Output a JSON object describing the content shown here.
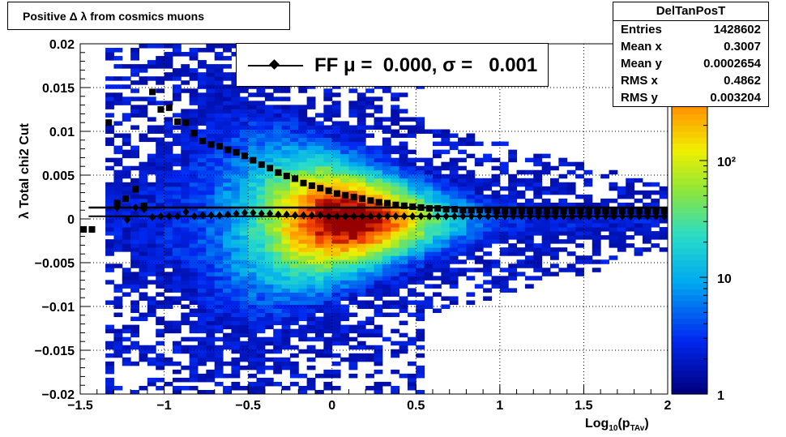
{
  "title": "Positive Δ λ from cosmics muons",
  "stats": {
    "name": "DelTanPosT",
    "rows": [
      {
        "label": "Entries",
        "value": "1428602"
      },
      {
        "label": "Mean x",
        "value": "0.3007"
      },
      {
        "label": "Mean y",
        "value": "0.0002654"
      },
      {
        "label": "RMS x",
        "value": "0.4862"
      },
      {
        "label": "RMS y",
        "value": "0.003204"
      }
    ]
  },
  "fit_legend": "FF μ =  0.000, σ =   0.001",
  "axes": {
    "ylabel": "λ  Total chi2 Cut",
    "xlabel_main": "Log",
    "xlabel_sub": "10",
    "xlabel_paren": "(p",
    "xlabel_subsub": "TAv",
    "xlabel_close": ")"
  },
  "colors": {
    "marker": "#000000",
    "palette": "rainbow"
  },
  "chart_data": {
    "type": "heatmap",
    "xlim": [
      -1.5,
      2
    ],
    "ylim": [
      -0.02,
      0.02
    ],
    "zlim": [
      1,
      1000
    ],
    "z_log": true,
    "grid": true,
    "x_ticks": [
      "−1.5",
      "−1",
      "−0.5",
      "0",
      "0.5",
      "1",
      "1.5",
      "2"
    ],
    "x_tick_values": [
      -1.5,
      -1,
      -0.5,
      0,
      0.5,
      1,
      1.5,
      2
    ],
    "y_ticks": [
      "0.02",
      "0.015",
      "0.01",
      "0.005",
      "0",
      "−0.005",
      "−0.01",
      "−0.015",
      "−0.02"
    ],
    "y_tick_values": [
      0.02,
      0.015,
      0.01,
      0.005,
      0,
      -0.005,
      -0.01,
      -0.015,
      -0.02
    ],
    "z_ticks": [
      "1",
      "10",
      "10²"
    ],
    "z_tick_values": [
      1,
      10,
      100
    ],
    "fit_line_y": 0.0013,
    "sigma_points": {
      "x": [
        -1.48,
        -1.43,
        -1.33,
        -1.28,
        -1.23,
        -1.17,
        -1.12,
        -1.07,
        -1.02,
        -0.97,
        -0.92,
        -0.87,
        -0.82,
        -0.77,
        -0.72,
        -0.67,
        -0.62,
        -0.57,
        -0.52,
        -0.47,
        -0.42,
        -0.37,
        -0.32,
        -0.27,
        -0.22,
        -0.17,
        -0.12,
        -0.07,
        -0.02,
        0.03,
        0.08,
        0.13,
        0.18,
        0.23,
        0.28,
        0.33,
        0.38,
        0.43,
        0.48,
        0.53,
        0.58,
        0.63,
        0.68,
        0.73,
        0.78,
        0.83,
        0.88,
        0.93,
        0.98,
        1.03,
        1.08,
        1.13,
        1.18,
        1.23,
        1.28,
        1.33,
        1.38,
        1.43,
        1.48,
        1.53,
        1.58,
        1.63,
        1.68,
        1.73,
        1.78,
        1.83,
        1.88,
        1.93,
        1.98
      ],
      "y": [
        -0.0012,
        -0.0012,
        0.011,
        0.0018,
        0.0023,
        0.0034,
        0.0015,
        0.0145,
        0.0125,
        0.0127,
        0.0111,
        0.011,
        0.0098,
        0.0089,
        0.0085,
        0.0083,
        0.0079,
        0.0076,
        0.0072,
        0.0067,
        0.0062,
        0.0058,
        0.0053,
        0.0049,
        0.0046,
        0.0041,
        0.0038,
        0.0035,
        0.0032,
        0.0029,
        0.0027,
        0.0025,
        0.0023,
        0.0021,
        0.0019,
        0.0018,
        0.0016,
        0.0015,
        0.0014,
        0.0013,
        0.0012,
        0.0012,
        0.0011,
        0.0011,
        0.001,
        0.001,
        0.001,
        0.001,
        0.0009,
        0.0009,
        0.0009,
        0.0009,
        0.0009,
        0.0009,
        0.0009,
        0.0009,
        0.0009,
        0.0009,
        0.0009,
        0.0009,
        0.0009,
        0.0009,
        0.0009,
        0.0009,
        0.0009,
        0.0009,
        0.0009,
        0.0009,
        0.0009
      ]
    },
    "mean_points": {
      "x": [
        -1.28,
        -1.22,
        -1.17,
        -1.12,
        -1.07,
        -1.02,
        -0.97,
        -0.92,
        -0.87,
        -0.82,
        -0.77,
        -0.72,
        -0.67,
        -0.62,
        -0.57,
        -0.52,
        -0.47,
        -0.42,
        -0.37,
        -0.32,
        -0.27,
        -0.22,
        -0.17,
        -0.12,
        -0.07,
        -0.02,
        0.03,
        0.08,
        0.13,
        0.18,
        0.23,
        0.28,
        0.33,
        0.38,
        0.43,
        0.48,
        0.53,
        0.58,
        0.63,
        0.68,
        0.73,
        0.78,
        0.83,
        0.88,
        0.93,
        0.98,
        1.03,
        1.08,
        1.13,
        1.18,
        1.23,
        1.28,
        1.33,
        1.38,
        1.43,
        1.48,
        1.53,
        1.58,
        1.63,
        1.68,
        1.73,
        1.78,
        1.83,
        1.88,
        1.93,
        1.98
      ],
      "y": [
        0.0013,
        -0.0001,
        0.0013,
        0.0011,
        0.0002,
        0.0003,
        0.0003,
        0.0003,
        0.0008,
        0.0003,
        0.0004,
        0.0004,
        0.0004,
        0.0005,
        0.0006,
        0.0007,
        0.0007,
        0.0006,
        0.0006,
        0.0005,
        0.0005,
        0.0004,
        0.0004,
        0.0004,
        0.0004,
        0.0003,
        0.0003,
        0.0003,
        0.0003,
        0.0003,
        0.0003,
        0.0003,
        0.0003,
        0.0003,
        0.0003,
        0.0003,
        0.0003,
        0.0003,
        0.0003,
        0.0003,
        0.0003,
        0.0003,
        0.0003,
        0.0003,
        0.0003,
        0.0003,
        0.0003,
        0.0003,
        0.0003,
        0.0003,
        0.0003,
        0.0003,
        0.0003,
        0.0003,
        0.0003,
        0.0003,
        0.0003,
        0.0003,
        0.0003,
        0.0003,
        0.0003,
        0.0003,
        0.0003,
        0.0003,
        0.0003,
        0.0003
      ]
    }
  }
}
